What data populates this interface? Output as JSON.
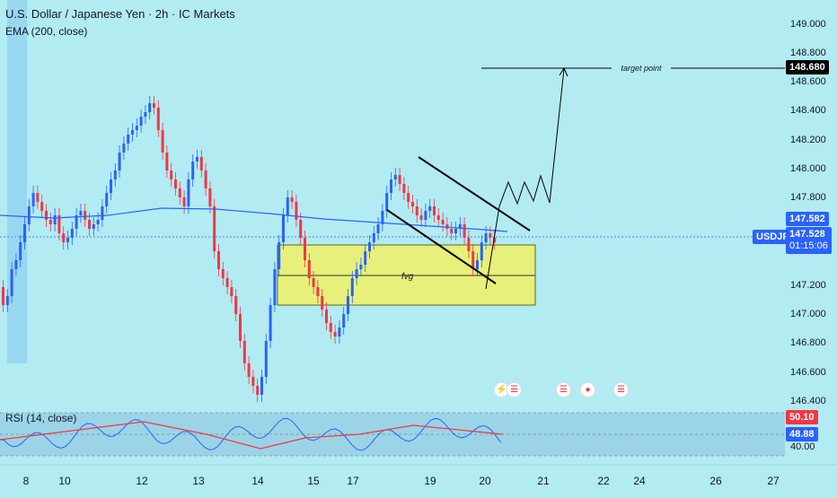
{
  "header": {
    "symbol_title": "U.S. Dollar / Japanese Yen · 2h · IC Markets",
    "ema_label": "EMA (200, close)",
    "rsi_label": "RSI (14, close)"
  },
  "price_axis": {
    "ticks": [
      "149.000",
      "148.800",
      "148.600",
      "148.400",
      "148.200",
      "148.000",
      "147.800",
      "147.200",
      "147.000",
      "146.800",
      "146.600",
      "146.400"
    ],
    "target_price": "148.680",
    "ema_price": "147.582",
    "symbol_tag": "USDJPY",
    "last_price": "147.528",
    "countdown": "01:15:06"
  },
  "rsi_axis": {
    "ticks": [
      "40.00"
    ],
    "rsi_ma": "50.10",
    "rsi_value": "48.88"
  },
  "time_axis": {
    "labels": [
      "8",
      "10",
      "12",
      "13",
      "14",
      "15",
      "17",
      "19",
      "20",
      "21",
      "22",
      "24",
      "26",
      "27"
    ]
  },
  "annotations": {
    "target_point": "target point",
    "fvg": "fvg"
  },
  "colors": {
    "background": "#b2ebf2",
    "up": "#2962ff",
    "down": "#f23645",
    "ema": "#2962ff",
    "rsi": "#2962ff",
    "rsi_ma": "#f23645",
    "zone": "#e6f07a"
  },
  "event_icons": [
    "flash-icon",
    "usd-flag-icon",
    "usd-flag-icon",
    "jpy-flag-icon",
    "usd-flag-icon"
  ]
}
